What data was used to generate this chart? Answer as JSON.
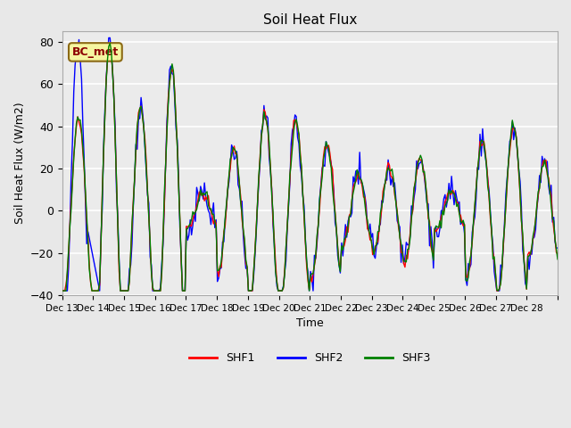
{
  "title": "Soil Heat Flux",
  "ylabel": "Soil Heat Flux (W/m2)",
  "xlabel": "Time",
  "ylim": [
    -40,
    85
  ],
  "yticks": [
    -40,
    -20,
    0,
    20,
    40,
    60,
    80
  ],
  "line_colors": {
    "SHF1": "red",
    "SHF2": "blue",
    "SHF3": "green"
  },
  "annotation_text": "BC_met",
  "annotation_bg": "#f5f5a0",
  "annotation_edge": "#8b6914",
  "xtick_positions": [
    0,
    1,
    2,
    3,
    4,
    5,
    6,
    7,
    8,
    9,
    10,
    11,
    12,
    13,
    14,
    15,
    16
  ],
  "xtick_labels": [
    "Dec 13",
    "Dec 14",
    "Dec 15",
    "Dec 16",
    "Dec 17",
    "Dec 18",
    "Dec 19",
    "Dec 20",
    "Dec 21",
    "Dec 22",
    "Dec 23",
    "Dec 24",
    "Dec 25",
    "Dec 26",
    "Dec 27",
    "Dec 28",
    ""
  ],
  "n_days": 16
}
